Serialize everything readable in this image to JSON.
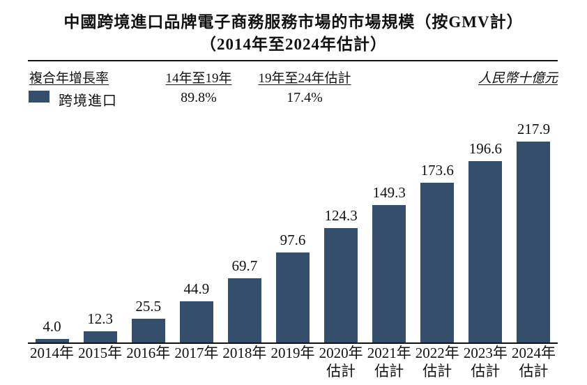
{
  "accent_colors": {
    "bar": "#344E6C",
    "text": "#111111"
  },
  "table_header": {
    "cagr_label": "複合年增長率",
    "period1_label": "14年至19年",
    "period2_label": "19年至24年估計",
    "unit_label": "人民幣十億元"
  },
  "legend": {
    "series_label": "跨境進口",
    "period1_value": "89.8%",
    "period2_value": "17.4%"
  },
  "chart_data": {
    "type": "bar",
    "title": "中國跨境進口品牌電子商務服務市場的市場規模（按GMV計）",
    "subtitle": "（2014年至2024年估計）",
    "ylabel": "人民幣十億元",
    "series_name": "跨境進口",
    "categories": [
      {
        "label": "2014年",
        "sub": ""
      },
      {
        "label": "2015年",
        "sub": ""
      },
      {
        "label": "2016年",
        "sub": ""
      },
      {
        "label": "2017年",
        "sub": ""
      },
      {
        "label": "2018年",
        "sub": ""
      },
      {
        "label": "2019年",
        "sub": ""
      },
      {
        "label": "2020年",
        "sub": "估計"
      },
      {
        "label": "2021年",
        "sub": "估計"
      },
      {
        "label": "2022年",
        "sub": "估計"
      },
      {
        "label": "2023年",
        "sub": "估計"
      },
      {
        "label": "2024年",
        "sub": "估計"
      }
    ],
    "values": [
      4.0,
      12.3,
      25.5,
      44.9,
      69.7,
      97.6,
      124.3,
      149.3,
      173.6,
      196.6,
      217.9
    ],
    "cagr_2014_2019": "89.8%",
    "cagr_2019_2024e": "17.4%",
    "ylim": [
      0,
      230
    ],
    "grid": false,
    "legend_position": "top-left",
    "bar_color": "#344E6C"
  }
}
